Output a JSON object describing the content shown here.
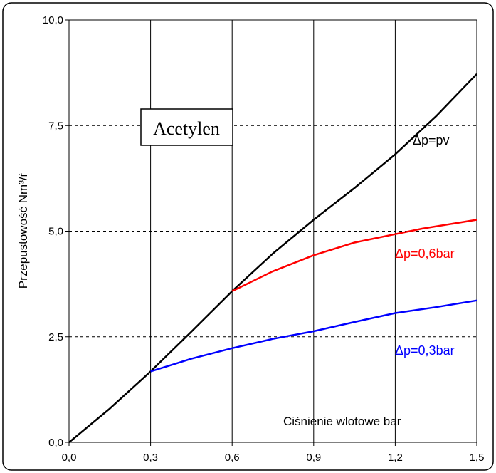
{
  "chart_data": {
    "type": "line",
    "title": "",
    "xlabel": "Ciśnienie wlotowe bar",
    "ylabel": "Przepustowość Nm³/ŕ",
    "xlim": [
      0.0,
      1.5
    ],
    "ylim": [
      0.0,
      10.0
    ],
    "x_ticks": [
      "0,0",
      "0,3",
      "0,6",
      "0,9",
      "1,2",
      "1,5"
    ],
    "y_ticks": [
      "0,0",
      "2,5",
      "5,0",
      "7,5",
      "10,0"
    ],
    "x_tick_values": [
      0.0,
      0.3,
      0.6,
      0.9,
      1.2,
      1.5
    ],
    "y_tick_values": [
      0.0,
      2.5,
      5.0,
      7.5,
      10.0
    ],
    "grid": {
      "vertical": "solid",
      "horizontal": "dashed"
    },
    "annotation_box": "Acetylen",
    "series": [
      {
        "label": "Δp=pv",
        "color": "#000000",
        "points": [
          [
            0.0,
            0.0
          ],
          [
            0.15,
            0.8
          ],
          [
            0.3,
            1.68
          ],
          [
            0.45,
            2.62
          ],
          [
            0.6,
            3.58
          ],
          [
            0.75,
            4.47
          ],
          [
            0.9,
            5.27
          ],
          [
            1.05,
            6.02
          ],
          [
            1.2,
            6.82
          ],
          [
            1.35,
            7.72
          ],
          [
            1.5,
            8.72
          ]
        ]
      },
      {
        "label": "Δp=0,6bar",
        "color": "#ff0000",
        "points": [
          [
            0.6,
            3.58
          ],
          [
            0.75,
            4.05
          ],
          [
            0.9,
            4.43
          ],
          [
            1.05,
            4.73
          ],
          [
            1.2,
            4.93
          ],
          [
            1.3,
            5.06
          ],
          [
            1.5,
            5.27
          ]
        ]
      },
      {
        "label": "Δp=0,3bar",
        "color": "#0000ff",
        "points": [
          [
            0.3,
            1.68
          ],
          [
            0.45,
            1.98
          ],
          [
            0.6,
            2.23
          ],
          [
            0.75,
            2.45
          ],
          [
            0.9,
            2.63
          ],
          [
            1.05,
            2.85
          ],
          [
            1.2,
            3.06
          ],
          [
            1.35,
            3.2
          ],
          [
            1.5,
            3.36
          ]
        ]
      }
    ]
  }
}
